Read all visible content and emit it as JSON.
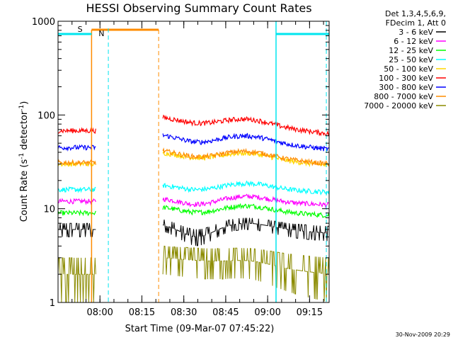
{
  "chart_data": {
    "type": "line",
    "title": "HESSI Observing Summary Count Rates",
    "xlabel": "Start Time (09-Mar-07 07:45:22)",
    "ylabel": "Count Rate (s",
    "ylabel_sup1": "-1",
    "ylabel_mid": " detector",
    "ylabel_sup2": "-1",
    "ylabel_end": ")",
    "yscale": "log",
    "ylim": [
      1,
      1000
    ],
    "xlim": [
      "07:45",
      "09:22"
    ],
    "x_ticks": [
      "08:00",
      "08:15",
      "08:30",
      "08:45",
      "09:00",
      "09:15"
    ],
    "y_ticks": [
      "1",
      "10",
      "100",
      "1000"
    ],
    "legend_header": [
      "Det 1,3,4,5,6,9,",
      "FDecim 1, Att 0"
    ],
    "timestamp": "30-Nov-2009 20:29",
    "markers": [
      {
        "label": "S",
        "color": "#ff8c00"
      },
      {
        "label": "N",
        "color": "#00e5ee"
      }
    ],
    "series": [
      {
        "name": "3 - 6 keV",
        "color": "#000000",
        "pre": 5.5,
        "post": 6.5,
        "mid": 4.8,
        "end": 5.0
      },
      {
        "name": "6 - 12 keV",
        "color": "#ff00ff",
        "pre": 12,
        "post": 13,
        "mid": 11.5,
        "end": 11
      },
      {
        "name": "12 - 25 keV",
        "color": "#00ff00",
        "pre": 9,
        "post": 10.5,
        "mid": 9.5,
        "end": 8.5
      },
      {
        "name": "25 - 50 keV",
        "color": "#00ffff",
        "pre": 16,
        "post": 18,
        "mid": 16.5,
        "end": 15
      },
      {
        "name": "50 - 100 keV",
        "color": "#ffd700",
        "pre": 30,
        "post": 40,
        "mid": 37,
        "end": 29
      },
      {
        "name": "100 - 300 keV",
        "color": "#ff0000",
        "pre": 68,
        "post": 95,
        "mid": 88,
        "end": 63
      },
      {
        "name": "300 - 800 keV",
        "color": "#0000ff",
        "pre": 45,
        "post": 62,
        "mid": 55,
        "end": 43
      },
      {
        "name": "800 - 7000 keV",
        "color": "#ff8c00",
        "pre": 31,
        "post": 42,
        "mid": 38,
        "end": 30
      },
      {
        "name": "7000 - 20000 keV",
        "color": "#8b8b00",
        "pre": 1.5,
        "post": 2.5,
        "mid": 2.5,
        "end": 1.5
      }
    ]
  }
}
